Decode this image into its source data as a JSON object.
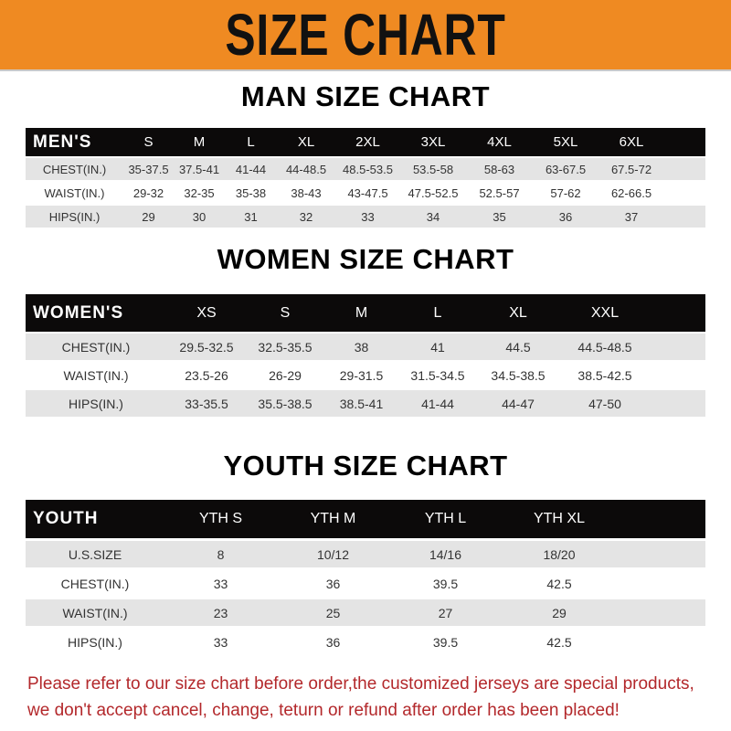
{
  "banner": {
    "title": "SIZE CHART"
  },
  "men": {
    "title": "MAN SIZE CHART",
    "header": [
      "MEN'S",
      "S",
      "M",
      "L",
      "XL",
      "2XL",
      "3XL",
      "4XL",
      "5XL",
      "6XL"
    ],
    "rows": [
      [
        "CHEST(IN.)",
        "35-37.5",
        "37.5-41",
        "41-44",
        "44-48.5",
        "48.5-53.5",
        "53.5-58",
        "58-63",
        "63-67.5",
        "67.5-72"
      ],
      [
        "WAIST(IN.)",
        "29-32",
        "32-35",
        "35-38",
        "38-43",
        "43-47.5",
        "47.5-52.5",
        "52.5-57",
        "57-62",
        "62-66.5"
      ],
      [
        "HIPS(IN.)",
        "29",
        "30",
        "31",
        "32",
        "33",
        "34",
        "35",
        "36",
        "37"
      ]
    ]
  },
  "women": {
    "title": "WOMEN SIZE CHART",
    "header": [
      "WOMEN'S",
      "XS",
      "S",
      "M",
      "L",
      "XL",
      "XXL"
    ],
    "rows": [
      [
        "CHEST(IN.)",
        "29.5-32.5",
        "32.5-35.5",
        "38",
        "41",
        "44.5",
        "44.5-48.5"
      ],
      [
        "WAIST(IN.)",
        "23.5-26",
        "26-29",
        "29-31.5",
        "31.5-34.5",
        "34.5-38.5",
        "38.5-42.5"
      ],
      [
        "HIPS(IN.)",
        "33-35.5",
        "35.5-38.5",
        "38.5-41",
        "41-44",
        "44-47",
        "47-50"
      ]
    ]
  },
  "youth": {
    "title": "YOUTH SIZE CHART",
    "header": [
      "YOUTH",
      "YTH S",
      "YTH M",
      "YTH L",
      "YTH XL"
    ],
    "rows": [
      [
        "U.S.SIZE",
        "8",
        "10/12",
        "14/16",
        "18/20"
      ],
      [
        "CHEST(IN.)",
        "33",
        "36",
        "39.5",
        "42.5"
      ],
      [
        "WAIST(IN.)",
        "23",
        "25",
        "27",
        "29"
      ],
      [
        "HIPS(IN.)",
        "33",
        "36",
        "39.5",
        "42.5"
      ]
    ]
  },
  "note": {
    "line1": "Please refer to our size chart before order,the customized jerseys are special products,",
    "line2": "we don't accept cancel, change, teturn or refund after order has been placed!"
  },
  "colors": {
    "banner": "#ef8a22",
    "header_row": "#0c0a0a",
    "note": "#b3282b"
  }
}
